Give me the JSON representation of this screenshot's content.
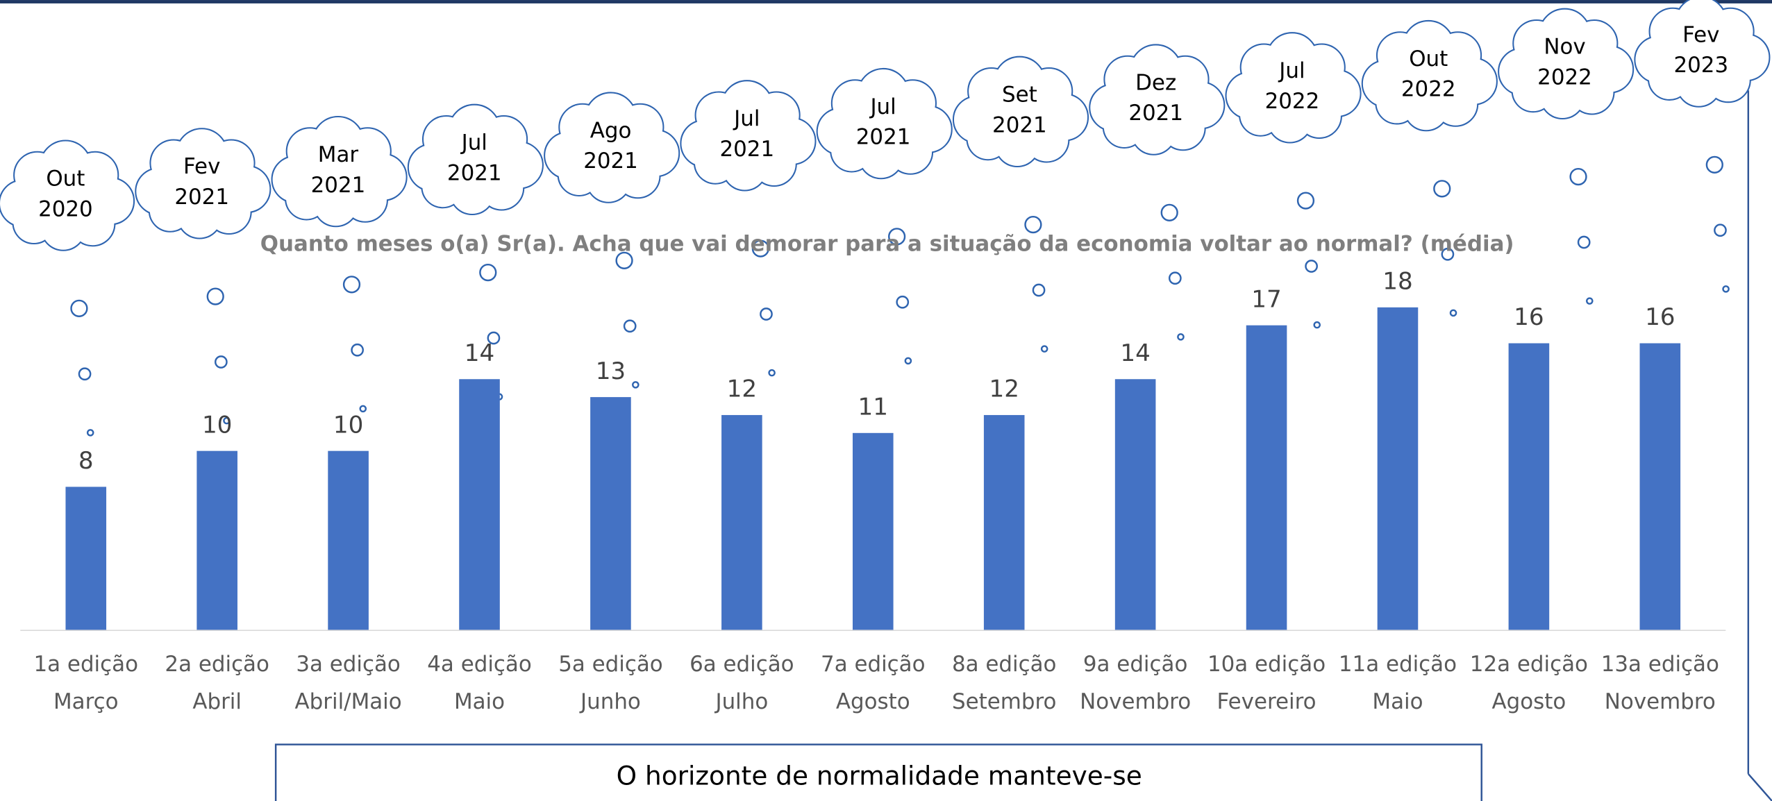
{
  "chart_data": {
    "type": "bar",
    "title": "Quanto meses o(a) Sr(a). Acha que vai demorar para a situação da economia voltar ao normal? (média)",
    "categories": [
      {
        "edition": "1a edição",
        "month": "Março"
      },
      {
        "edition": "2a edição",
        "month": "Abril"
      },
      {
        "edition": "3a edição",
        "month": "Abril/Maio"
      },
      {
        "edition": "4a edição",
        "month": "Maio"
      },
      {
        "edition": "5a edição",
        "month": "Junho"
      },
      {
        "edition": "6a edição",
        "month": "Julho"
      },
      {
        "edition": "7a edição",
        "month": "Agosto"
      },
      {
        "edition": "8a edição",
        "month": "Setembro"
      },
      {
        "edition": "9a edição",
        "month": "Novembro"
      },
      {
        "edition": "10a edição",
        "month": "Fevereiro"
      },
      {
        "edition": "11a edição",
        "month": "Maio"
      },
      {
        "edition": "12a edição",
        "month": "Agosto"
      },
      {
        "edition": "13a edição",
        "month": "Novembro"
      }
    ],
    "values": [
      8,
      10,
      10,
      14,
      13,
      12,
      11,
      12,
      14,
      17,
      18,
      16,
      16
    ],
    "color": "#4472c4",
    "ylim": [
      0,
      35
    ],
    "annotations": [
      [
        "Out",
        "2020"
      ],
      [
        "Fev",
        "2021"
      ],
      [
        "Mar",
        "2021"
      ],
      [
        "Jul",
        "2021"
      ],
      [
        "Ago",
        "2021"
      ],
      [
        "Jul",
        "2021"
      ],
      [
        "Jul",
        "2021"
      ],
      [
        "Set",
        "2021"
      ],
      [
        "Dez",
        "2021"
      ],
      [
        "Jul",
        "2022"
      ],
      [
        "Out",
        "2022"
      ],
      [
        "Nov",
        "2022"
      ],
      [
        "Fev",
        "2023"
      ]
    ],
    "footer": "O horizonte de normalidade manteve-se"
  }
}
